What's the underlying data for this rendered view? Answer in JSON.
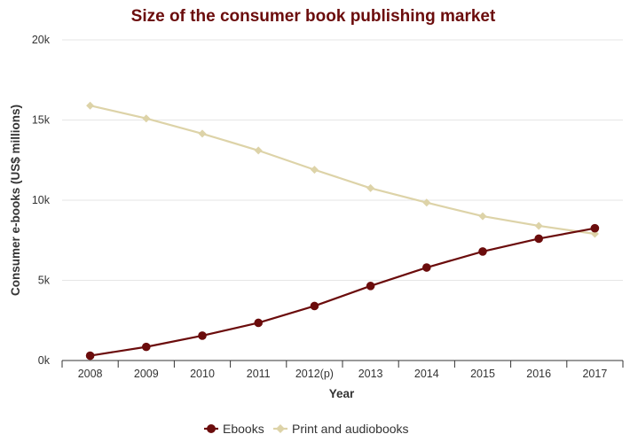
{
  "chart_data": {
    "type": "line",
    "title": "Size of the consumer book publishing market",
    "xlabel": "Year",
    "ylabel": "Consumer e-books (US$ millions)",
    "categories": [
      "2008",
      "2009",
      "2010",
      "2011",
      "2012(p)",
      "2013",
      "2014",
      "2015",
      "2016",
      "2017"
    ],
    "ylim": [
      0,
      20000
    ],
    "yticks": [
      0,
      5000,
      10000,
      15000,
      20000
    ],
    "ytick_labels": [
      "0k",
      "5k",
      "10k",
      "15k",
      "20k"
    ],
    "grid": true,
    "legend_position": "bottom",
    "series": [
      {
        "name": "Ebooks",
        "color": "#6b0c0c",
        "marker": "circle",
        "values": [
          300,
          850,
          1550,
          2350,
          3400,
          4650,
          5800,
          6800,
          7600,
          8250
        ]
      },
      {
        "name": "Print and audiobooks",
        "color": "#ddd3a8",
        "marker": "diamond",
        "values": [
          15900,
          15100,
          14150,
          13100,
          11900,
          10750,
          9850,
          9000,
          8400,
          7900
        ]
      }
    ]
  }
}
